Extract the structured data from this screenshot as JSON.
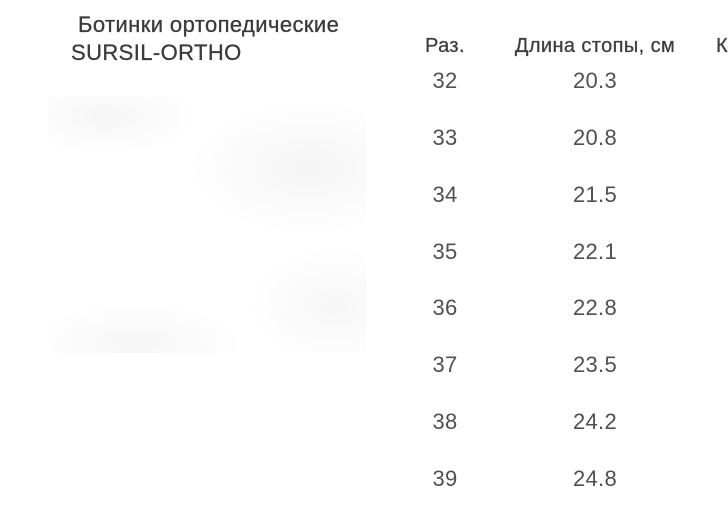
{
  "page": {
    "background": "#ffffff"
  },
  "colors": {
    "title_text": "#3a3a3c",
    "header_text": "#3e3e40",
    "cell_text": "#4f4f54"
  },
  "product": {
    "title": "Ботинки ортопедические SURSIL-ORTHO",
    "title_lines": [
      "Ботинки ортопедические",
      "SURSIL-ORTHO"
    ]
  },
  "size_table": {
    "columns": [
      "Раз.",
      "Длина стопы, см",
      "К"
    ],
    "rows": [
      {
        "size": "32",
        "foot_length_cm": "20.3"
      },
      {
        "size": "33",
        "foot_length_cm": "20.8"
      },
      {
        "size": "34",
        "foot_length_cm": "21.5"
      },
      {
        "size": "35",
        "foot_length_cm": "22.1"
      },
      {
        "size": "36",
        "foot_length_cm": "22.8"
      },
      {
        "size": "37",
        "foot_length_cm": "23.5"
      },
      {
        "size": "38",
        "foot_length_cm": "24.2"
      },
      {
        "size": "39",
        "foot_length_cm": "24.8"
      }
    ]
  }
}
